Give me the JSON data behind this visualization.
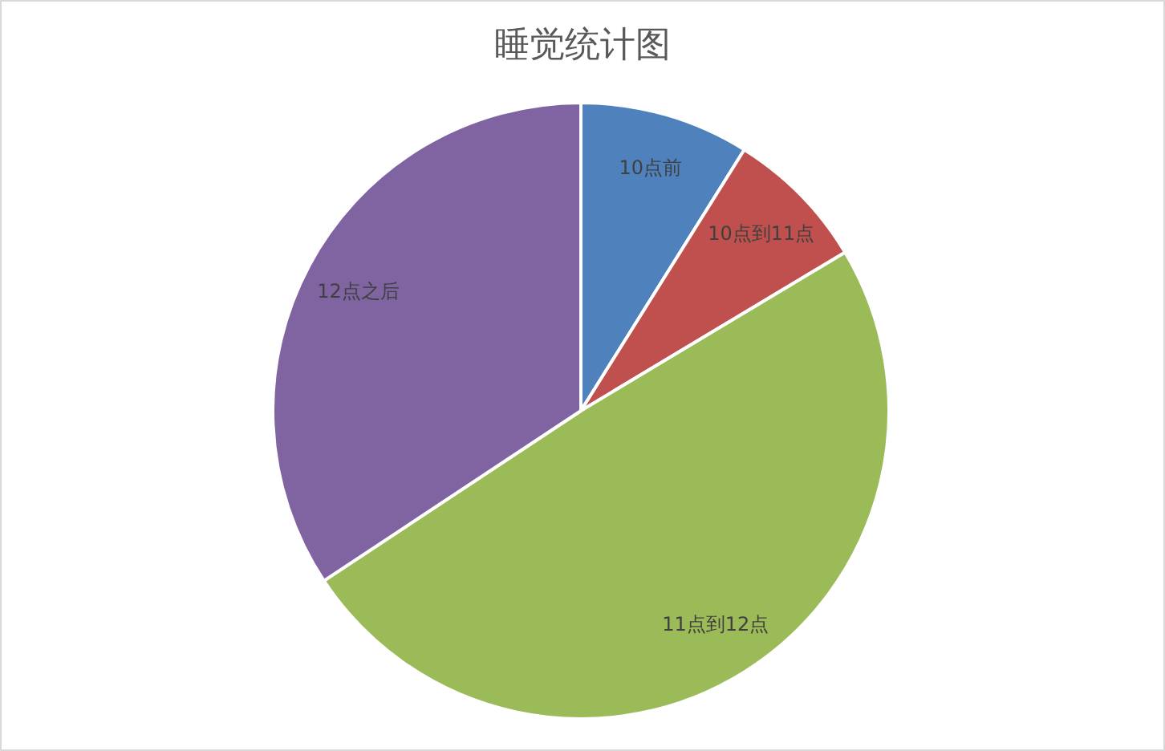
{
  "chart_data": {
    "type": "pie",
    "title": "睡觉统计图",
    "categories": [
      "10点前",
      "10点到11点",
      "11点到12点",
      "12点之后"
    ],
    "values": [
      8.9,
      7.5,
      49.3,
      34.3
    ],
    "colors": [
      "#4f81bd",
      "#c0504d",
      "#9bbb59",
      "#8064a2"
    ],
    "legend": false
  }
}
